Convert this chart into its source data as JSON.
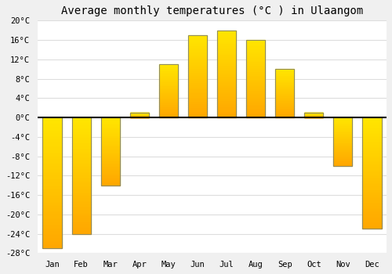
{
  "title": "Average monthly temperatures (°C ) in Ulaangom",
  "months": [
    "Jan",
    "Feb",
    "Mar",
    "Apr",
    "May",
    "Jun",
    "Jul",
    "Aug",
    "Sep",
    "Oct",
    "Nov",
    "Dec"
  ],
  "values": [
    -27,
    -24,
    -14,
    1,
    11,
    17,
    18,
    16,
    10,
    1,
    -10,
    -23
  ],
  "bar_color": "#FFA500",
  "bar_edge_color": "#888866",
  "background_color": "#F0F0F0",
  "plot_bg_color": "#FFFFFF",
  "grid_color": "#DDDDDD",
  "ylim": [
    -28,
    20
  ],
  "yticks": [
    -28,
    -24,
    -20,
    -16,
    -12,
    -8,
    -4,
    0,
    4,
    8,
    12,
    16,
    20
  ],
  "title_fontsize": 10,
  "tick_fontsize": 7.5,
  "bar_width": 0.65
}
